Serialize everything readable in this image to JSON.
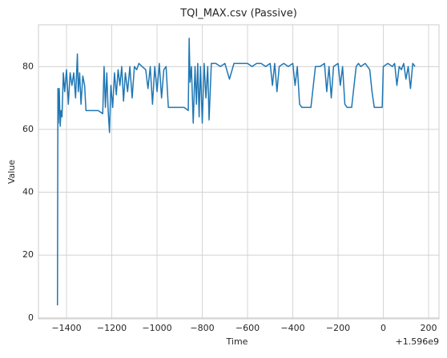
{
  "chart_data": {
    "type": "line",
    "title": "TQI_MAX.csv (Passive)",
    "xlabel": "Time",
    "ylabel": "Value",
    "x_offset_label": "+1.596e9",
    "color": "#1f77b4",
    "grid": true,
    "xlim": [
      -1524,
      246
    ],
    "ylim": [
      -0.3,
      93.3
    ],
    "xticks": [
      {
        "value": -1400,
        "label": "−1400"
      },
      {
        "value": -1200,
        "label": "−1200"
      },
      {
        "value": -1000,
        "label": "−1000"
      },
      {
        "value": -800,
        "label": "−800"
      },
      {
        "value": -600,
        "label": "−600"
      },
      {
        "value": -400,
        "label": "−400"
      },
      {
        "value": -200,
        "label": "−200"
      },
      0,
      200
    ],
    "yticks": [
      0,
      20,
      40,
      60,
      80
    ],
    "x": [
      -1440,
      -1438,
      -1436,
      -1432,
      -1428,
      -1424,
      -1420,
      -1414,
      -1408,
      -1400,
      -1392,
      -1384,
      -1376,
      -1368,
      -1360,
      -1352,
      -1348,
      -1342,
      -1336,
      -1328,
      -1320,
      -1314,
      -1300,
      -1280,
      -1260,
      -1240,
      -1234,
      -1228,
      -1222,
      -1216,
      -1210,
      -1204,
      -1196,
      -1188,
      -1180,
      -1172,
      -1164,
      -1156,
      -1148,
      -1140,
      -1130,
      -1120,
      -1110,
      -1100,
      -1090,
      -1080,
      -1066,
      -1050,
      -1040,
      -1030,
      -1020,
      -1010,
      -1000,
      -990,
      -980,
      -970,
      -960,
      -950,
      -940,
      -920,
      -900,
      -880,
      -862,
      -858,
      -854,
      -848,
      -840,
      -832,
      -826,
      -820,
      -814,
      -808,
      -800,
      -792,
      -784,
      -776,
      -770,
      -760,
      -740,
      -720,
      -700,
      -680,
      -660,
      -640,
      -620,
      -600,
      -580,
      -560,
      -540,
      -520,
      -500,
      -490,
      -480,
      -470,
      -460,
      -440,
      -420,
      -400,
      -390,
      -380,
      -370,
      -360,
      -340,
      -320,
      -300,
      -280,
      -260,
      -250,
      -240,
      -230,
      -220,
      -200,
      -190,
      -180,
      -170,
      -160,
      -140,
      -120,
      -110,
      -100,
      -80,
      -60,
      -50,
      -40,
      -20,
      -5,
      0,
      20,
      40,
      50,
      60,
      70,
      80,
      90,
      100,
      110,
      120,
      130,
      140
    ],
    "values": [
      4,
      73,
      62,
      73,
      61,
      66,
      64,
      78,
      72,
      79,
      68,
      78,
      74,
      78,
      70,
      84,
      72,
      78,
      68,
      77,
      74,
      66,
      66,
      66,
      66,
      65,
      80,
      67,
      78,
      66,
      59,
      74,
      67,
      78,
      71,
      79,
      74,
      80,
      69,
      78,
      72,
      80,
      70,
      80,
      79,
      81,
      80,
      79,
      73,
      80,
      68,
      80,
      72,
      81,
      70,
      79,
      80,
      67,
      67,
      67,
      67,
      67,
      66,
      89,
      75,
      80,
      62,
      80,
      68,
      81,
      64,
      80,
      62,
      81,
      70,
      80,
      63,
      81,
      81,
      80,
      81,
      76,
      81,
      81,
      81,
      81,
      80,
      81,
      81,
      80,
      81,
      74,
      81,
      72,
      80,
      81,
      80,
      81,
      74,
      80,
      68,
      67,
      67,
      67,
      80,
      80,
      81,
      72,
      80,
      70,
      80,
      81,
      74,
      80,
      68,
      67,
      67,
      80,
      81,
      80,
      81,
      79,
      72,
      67,
      67,
      67,
      80,
      81,
      80,
      81,
      74,
      80,
      79,
      81,
      76,
      80,
      73,
      81,
      80
    ]
  }
}
